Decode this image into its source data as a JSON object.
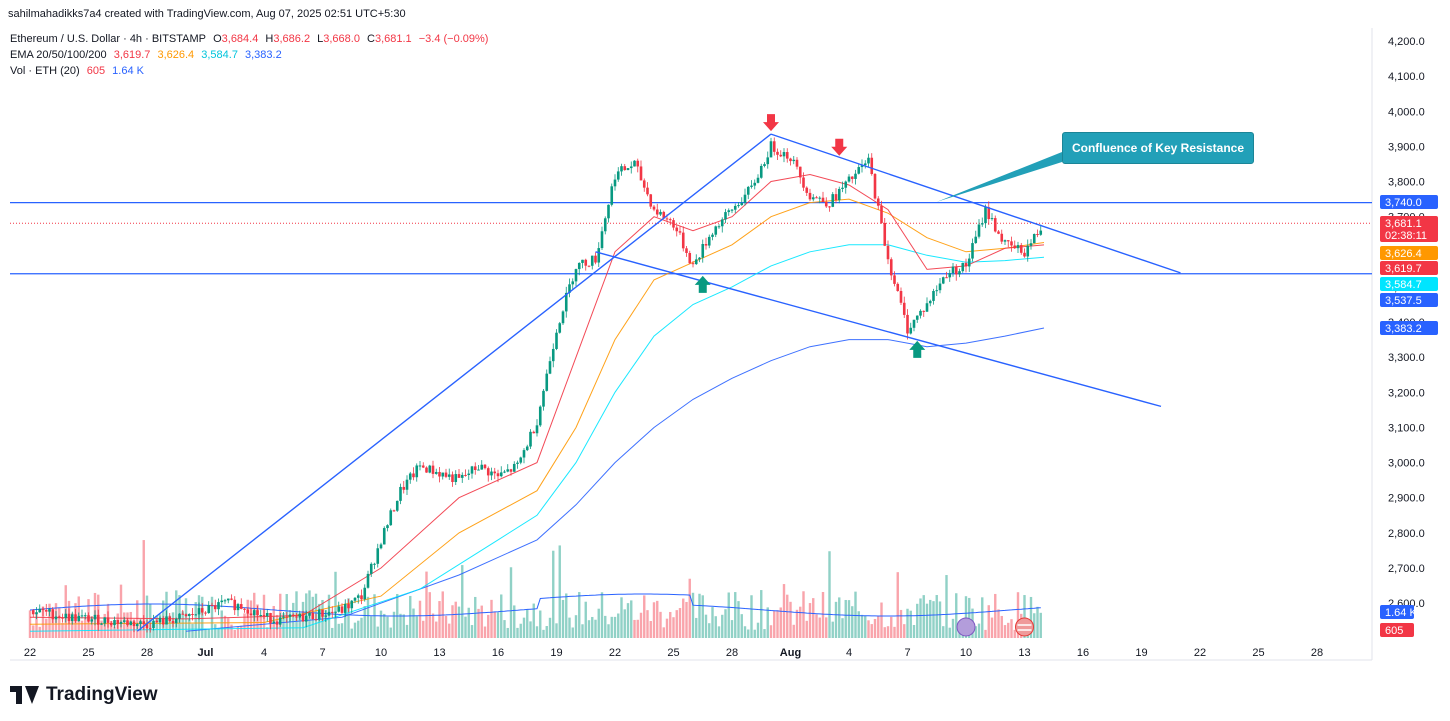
{
  "credit": "sahilmahadikks7a4 created with TradingView.com, Aug 07, 2025 02:51 UTC+5:30",
  "brand": "TradingView",
  "legend": {
    "symbol": "Ethereum / U.S. Dollar · 4h · BITSTAMP",
    "o_label": "O",
    "o": "3,684.4",
    "h_label": "H",
    "h": "3,686.2",
    "l_label": "L",
    "l": "3,668.0",
    "c_label": "C",
    "c": "3,681.1",
    "change": "−3.4 (−0.09%)",
    "ema_label": "EMA 20/50/100/200",
    "ema20": "3,619.7",
    "ema50": "3,626.4",
    "ema100": "3,584.7",
    "ema200": "3,383.2",
    "vol_label": "Vol · ETH (20)",
    "vol": "605",
    "vol_ma": "1.64 K"
  },
  "annotation": "Confluence of Key Resistance",
  "colors": {
    "up": "#089981",
    "down": "#f23645",
    "ema20": "#f23645",
    "ema50": "#ff9800",
    "ema100": "#00e5ff",
    "ema200": "#2962ff",
    "trend": "#2962ff",
    "callout": "#22a0b8"
  },
  "price_badges": [
    {
      "value": "3,740.0",
      "price": 3740,
      "color": "#2962ff"
    },
    {
      "value": "3,681.1",
      "sub": "02:38:11",
      "price": 3681.1,
      "color": "#f23645"
    },
    {
      "value": "3,626.4",
      "price": 3626.4,
      "color": "#ff9800"
    },
    {
      "value": "3,619.7",
      "price": 3619.7,
      "color": "#f23645"
    },
    {
      "value": "3,584.7",
      "price": 3584.7,
      "color": "#00e5ff"
    },
    {
      "value": "3,537.5",
      "price": 3537.5,
      "color": "#2962ff"
    },
    {
      "value": "3,383.2",
      "price": 3383.2,
      "color": "#2962ff"
    }
  ],
  "volume_badges": [
    {
      "value": "1.64 K",
      "color": "#2962ff"
    },
    {
      "value": "605",
      "color": "#f23645"
    }
  ],
  "chart_data": {
    "type": "candlestick",
    "y_axis_ticks": [
      "4,200.0",
      "4,100.0",
      "4,000.0",
      "3,900.0",
      "3,800.0",
      "3,700.0",
      "3,600.0",
      "3,500.0",
      "3,400.0",
      "3,300.0",
      "3,200.0",
      "3,100.0",
      "3,000.0",
      "2,900.0",
      "2,800.0",
      "2,700.0",
      "2,600.0"
    ],
    "y_range": [
      2520,
      4220
    ],
    "x_axis_ticks": [
      "22",
      "25",
      "28",
      "Jul",
      "4",
      "7",
      "10",
      "13",
      "16",
      "19",
      "22",
      "25",
      "28",
      "Aug",
      "4",
      "7",
      "10",
      "13",
      "16",
      "19",
      "22",
      "25",
      "28"
    ],
    "x_first_day": 0,
    "x_tick_day_offsets": [
      0,
      3,
      6,
      9,
      12,
      15,
      18,
      21,
      24,
      27,
      30,
      33,
      36,
      39,
      42,
      45,
      48,
      51,
      54,
      57,
      60,
      63,
      66
    ],
    "horizontal_levels": [
      3740,
      3537.5
    ],
    "last_price_line": 3681.1,
    "close_path": [
      [
        0,
        2580
      ],
      [
        2,
        2560
      ],
      [
        4,
        2550
      ],
      [
        6,
        2540
      ],
      [
        8,
        2560
      ],
      [
        10,
        2600
      ],
      [
        11,
        2590
      ],
      [
        12,
        2560
      ],
      [
        13,
        2550
      ],
      [
        14,
        2560
      ],
      [
        15,
        2570
      ],
      [
        16,
        2580
      ],
      [
        17,
        2620
      ],
      [
        18,
        2780
      ],
      [
        19,
        2920
      ],
      [
        20,
        2990
      ],
      [
        21,
        2970
      ],
      [
        22,
        2950
      ],
      [
        23,
        2990
      ],
      [
        24,
        2960
      ],
      [
        25,
        2990
      ],
      [
        26,
        3120
      ],
      [
        27,
        3380
      ],
      [
        28,
        3560
      ],
      [
        29,
        3580
      ],
      [
        30,
        3820
      ],
      [
        31,
        3850
      ],
      [
        32,
        3720
      ],
      [
        33,
        3680
      ],
      [
        34,
        3560
      ],
      [
        35,
        3660
      ],
      [
        36,
        3720
      ],
      [
        37,
        3780
      ],
      [
        38,
        3900
      ],
      [
        39,
        3870
      ],
      [
        40,
        3760
      ],
      [
        41,
        3740
      ],
      [
        42,
        3800
      ],
      [
        43,
        3860
      ],
      [
        44,
        3580
      ],
      [
        45,
        3380
      ],
      [
        46,
        3450
      ],
      [
        47,
        3540
      ],
      [
        48,
        3560
      ],
      [
        49,
        3720
      ],
      [
        50,
        3620
      ],
      [
        51,
        3600
      ],
      [
        52,
        3681
      ]
    ],
    "ema20": [
      [
        0,
        2560
      ],
      [
        8,
        2555
      ],
      [
        14,
        2565
      ],
      [
        18,
        2700
      ],
      [
        22,
        2900
      ],
      [
        26,
        3000
      ],
      [
        28,
        3300
      ],
      [
        30,
        3600
      ],
      [
        32,
        3700
      ],
      [
        34,
        3660
      ],
      [
        36,
        3700
      ],
      [
        38,
        3800
      ],
      [
        40,
        3820
      ],
      [
        42,
        3790
      ],
      [
        44,
        3720
      ],
      [
        46,
        3550
      ],
      [
        48,
        3560
      ],
      [
        50,
        3610
      ],
      [
        52,
        3619.7
      ]
    ],
    "ema50": [
      [
        0,
        2540
      ],
      [
        12,
        2545
      ],
      [
        18,
        2620
      ],
      [
        22,
        2800
      ],
      [
        26,
        2920
      ],
      [
        28,
        3100
      ],
      [
        30,
        3350
      ],
      [
        32,
        3520
      ],
      [
        34,
        3570
      ],
      [
        36,
        3620
      ],
      [
        38,
        3700
      ],
      [
        40,
        3740
      ],
      [
        42,
        3750
      ],
      [
        44,
        3710
      ],
      [
        46,
        3640
      ],
      [
        48,
        3600
      ],
      [
        50,
        3610
      ],
      [
        52,
        3626.4
      ]
    ],
    "ema100": [
      [
        0,
        2520
      ],
      [
        14,
        2530
      ],
      [
        20,
        2640
      ],
      [
        24,
        2780
      ],
      [
        26,
        2850
      ],
      [
        28,
        3000
      ],
      [
        30,
        3200
      ],
      [
        32,
        3360
      ],
      [
        34,
        3450
      ],
      [
        36,
        3500
      ],
      [
        38,
        3560
      ],
      [
        40,
        3600
      ],
      [
        42,
        3620
      ],
      [
        44,
        3620
      ],
      [
        46,
        3590
      ],
      [
        48,
        3570
      ],
      [
        50,
        3575
      ],
      [
        52,
        3584.7
      ]
    ],
    "ema200": [
      [
        8,
        2520
      ],
      [
        16,
        2560
      ],
      [
        22,
        2680
      ],
      [
        26,
        2780
      ],
      [
        28,
        2880
      ],
      [
        30,
        3000
      ],
      [
        32,
        3100
      ],
      [
        34,
        3180
      ],
      [
        36,
        3240
      ],
      [
        38,
        3290
      ],
      [
        40,
        3330
      ],
      [
        42,
        3350
      ],
      [
        44,
        3350
      ],
      [
        46,
        3330
      ],
      [
        48,
        3340
      ],
      [
        50,
        3360
      ],
      [
        52,
        3383.2
      ]
    ],
    "trendlines": [
      {
        "name": "rising-support",
        "from": [
          5.5,
          2520
        ],
        "to": [
          38,
          3935
        ]
      },
      {
        "name": "falling-resistance",
        "from": [
          38,
          3935
        ],
        "to": [
          59,
          3540
        ]
      },
      {
        "name": "falling-support",
        "from": [
          29,
          3600
        ],
        "to": [
          58,
          3160
        ]
      }
    ],
    "markers": [
      {
        "type": "sell",
        "day": 38,
        "price": 3935,
        "color": "#f23645"
      },
      {
        "type": "sell",
        "day": 41.5,
        "price": 3865,
        "color": "#f23645"
      },
      {
        "type": "buy",
        "day": 34.5,
        "price": 3540,
        "color": "#089981"
      },
      {
        "type": "buy",
        "day": 45.5,
        "price": 3355,
        "color": "#089981"
      }
    ]
  }
}
